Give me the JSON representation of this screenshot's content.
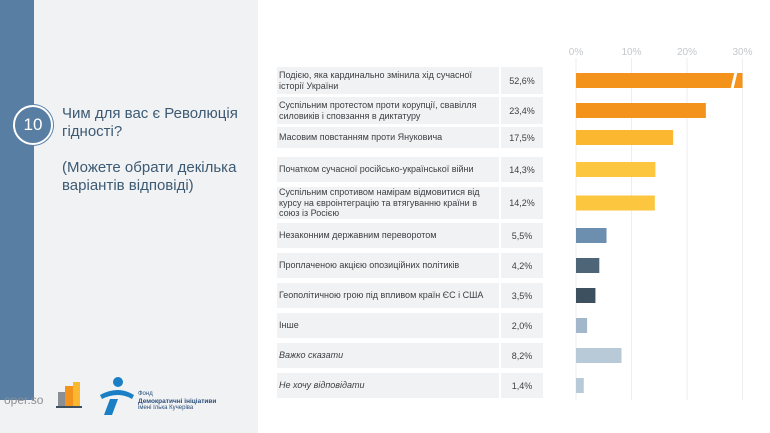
{
  "site": "oper.so",
  "question": {
    "number": "10",
    "title": "Чим для вас є Революція гідності?",
    "subtitle": "(Можете обрати декілька варіантів відповіді)"
  },
  "logo": {
    "line1": "Фонд",
    "line2": "Демократичні ініціативи",
    "line3": "імені Ілька Кучеріва"
  },
  "chart_data": {
    "type": "bar",
    "orientation": "horizontal",
    "xticks": [
      "0%",
      "10%",
      "20%",
      "30%"
    ],
    "xlim": [
      0,
      30
    ],
    "axis_break_over": 30,
    "categories": [
      "Подією, яка кардинально змінила хід сучасної історії України",
      "Суспільним протестом проти корупції, свавілля силовиків і сповзання в диктатуру",
      "Масовим повстанням проти Януковича",
      "Початком сучасної російсько-української війни",
      "Суспільним спротивом намірам відмовитися від курсу на євроінтеграцію та втягуванню країни в союз із Росією",
      "Незаконним державним переворотом",
      "Проплаченою акцією опозиційних політиків",
      "Геополітичною грою під впливом країн ЄС і США",
      "Інше",
      "Важко сказати",
      "Не хочу відповідати"
    ],
    "values": [
      52.6,
      23.4,
      17.5,
      14.3,
      14.2,
      5.5,
      4.2,
      3.5,
      2.0,
      8.2,
      1.4
    ],
    "value_labels": [
      "52,6%",
      "23,4%",
      "17,5%",
      "14,3%",
      "14,2%",
      "5,5%",
      "4,2%",
      "3,5%",
      "2,0%",
      "8,2%",
      "1,4%"
    ],
    "italic": [
      false,
      false,
      false,
      false,
      false,
      false,
      false,
      false,
      false,
      true,
      true
    ],
    "colors": [
      "#f4931c",
      "#f4931c",
      "#fbb72f",
      "#fcc63e",
      "#fcc63e",
      "#6c8fb0",
      "#4e6577",
      "#3c505f",
      "#a2b7c9",
      "#b8c9d8",
      "#b8c9d8"
    ]
  }
}
